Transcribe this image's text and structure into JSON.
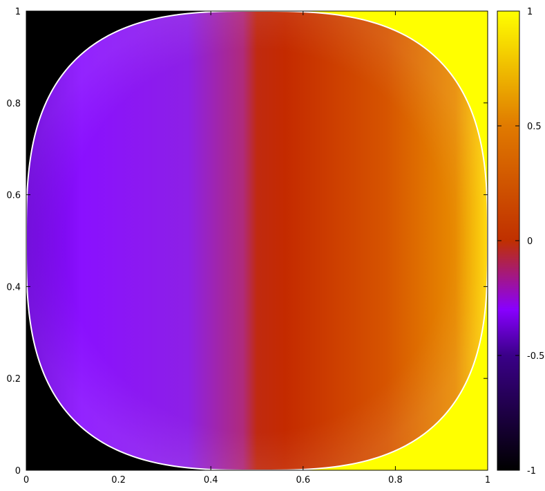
{
  "chart_data": {
    "type": "heatmap",
    "title": "",
    "xlabel": "",
    "ylabel": "",
    "xlim": [
      0,
      1
    ],
    "ylim": [
      0,
      1
    ],
    "x_ticks": [
      "0",
      "0.2",
      "0.4",
      "0.6",
      "0.8",
      "1"
    ],
    "y_ticks": [
      "0",
      "0.2",
      "0.4",
      "0.6",
      "0.8",
      "1"
    ],
    "colorbar": {
      "range": [
        -1,
        1
      ],
      "ticks": [
        "-1",
        "-0.5",
        "0",
        "0.5",
        "1"
      ],
      "palette": [
        "#000000",
        "#3a0088",
        "#8800ff",
        "#c03000",
        "#e07a00",
        "#ffff00"
      ]
    },
    "field": {
      "inside_region": "superellipse centered at (0.5, 0.5), semi-axes 0.5, white outline",
      "outside_left_value": -1,
      "outside_right_value": 1,
      "inside_left_value_range": [
        -0.6,
        -0.3
      ],
      "inside_right_value_range": [
        0.1,
        0.75
      ]
    },
    "boundary_color": "#ffffff",
    "grid": false
  }
}
